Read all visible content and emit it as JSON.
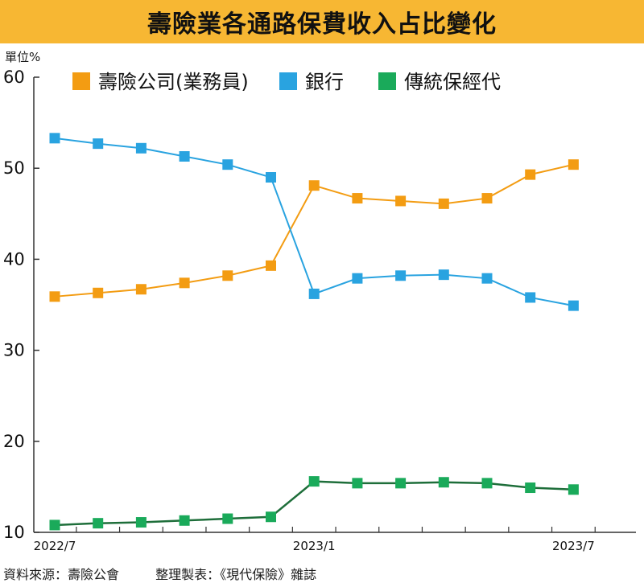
{
  "title": "壽險業各通路保費收入占比變化",
  "unit_label": "單位%",
  "source": {
    "data_source": "資料來源：壽險公會",
    "compiled_by": "整理製表：《現代保險》雜誌"
  },
  "colors": {
    "title_bar": "#f7b733",
    "insurer": "#f39c12",
    "bank": "#29a3e0",
    "traditional": "#1e6e3a",
    "traditional_marker": "#1aaa5a"
  },
  "chart_data": {
    "type": "line",
    "x": [
      "2022/7",
      "2022/8",
      "2022/9",
      "2022/10",
      "2022/11",
      "2022/12",
      "2023/1",
      "2023/2",
      "2023/3",
      "2023/4",
      "2023/5",
      "2023/6",
      "2023/7"
    ],
    "x_tick_labels": [
      "2022/7",
      "",
      "",
      "",
      "",
      "",
      "2023/1",
      "",
      "",
      "",
      "",
      "",
      "2023/7"
    ],
    "ylim": [
      10,
      60
    ],
    "y_ticks": [
      10,
      20,
      30,
      40,
      50,
      60
    ],
    "grid": false,
    "legend_position": "top",
    "series": [
      {
        "name": "壽險公司(業務員)",
        "color": "#f39c12",
        "values": [
          35.9,
          36.3,
          36.7,
          37.4,
          38.2,
          39.3,
          48.1,
          46.7,
          46.4,
          46.1,
          46.7,
          49.3,
          50.4
        ]
      },
      {
        "name": "銀行",
        "color": "#29a3e0",
        "values": [
          53.3,
          52.7,
          52.2,
          51.3,
          50.4,
          49.0,
          36.2,
          37.9,
          38.2,
          38.3,
          37.9,
          35.8,
          34.9
        ]
      },
      {
        "name": "傳統保經代",
        "color": "#1e6e3a",
        "values": [
          10.8,
          11.0,
          11.1,
          11.3,
          11.5,
          11.7,
          15.6,
          15.4,
          15.4,
          15.5,
          15.4,
          14.9,
          14.7
        ]
      }
    ]
  }
}
